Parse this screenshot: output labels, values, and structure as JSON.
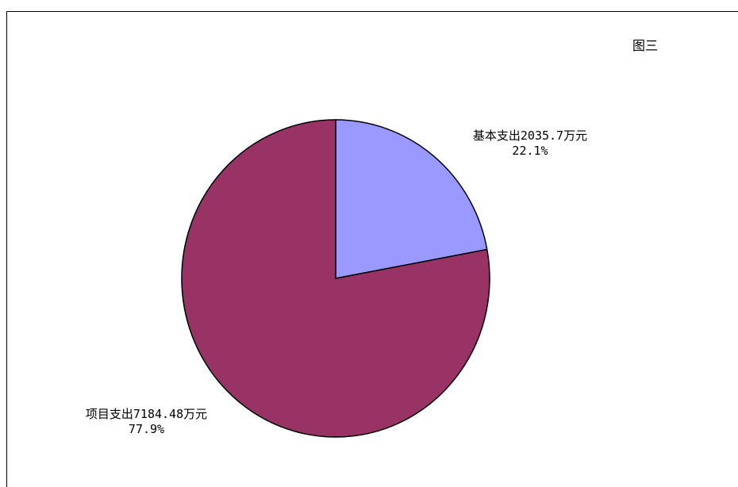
{
  "chart_data": {
    "type": "pie",
    "title": "图三",
    "slices": [
      {
        "label": "基本支出2035.7万元",
        "value": 2035.7,
        "percent_label": "22.1%",
        "color": "#9999ff"
      },
      {
        "label": "项目支出7184.48万元",
        "value": 7184.48,
        "percent_label": "77.9%",
        "color": "#993366"
      }
    ],
    "legend": "none"
  }
}
